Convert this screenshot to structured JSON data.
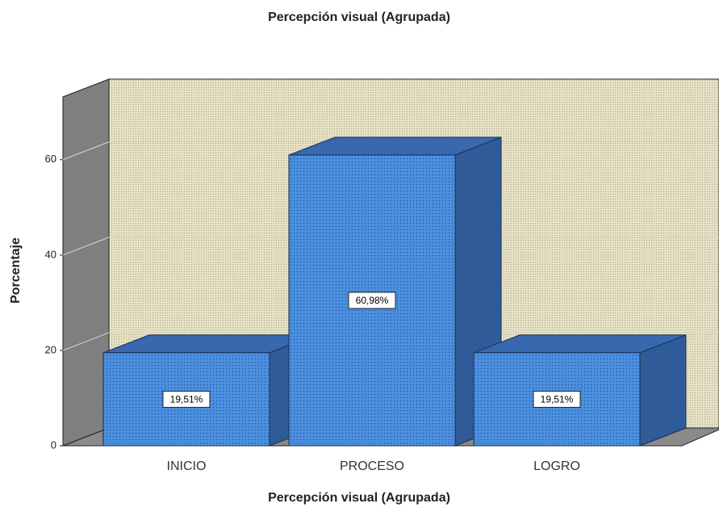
{
  "chart_data": {
    "type": "bar3d",
    "title": "Percepción visual (Agrupada)",
    "x_label": "Percepción visual (Agrupada)",
    "y_label": "Porcentaje",
    "categories": [
      "INICIO",
      "PROCESO",
      "LOGRO"
    ],
    "values": [
      19.51,
      60.98,
      19.51
    ],
    "value_labels": [
      "19,51%",
      "60,98%",
      "19,51%"
    ],
    "color": "#4a8fe0",
    "ylim": [
      0,
      73
    ],
    "yticks": [
      0,
      20,
      40,
      60
    ],
    "grid": true
  }
}
